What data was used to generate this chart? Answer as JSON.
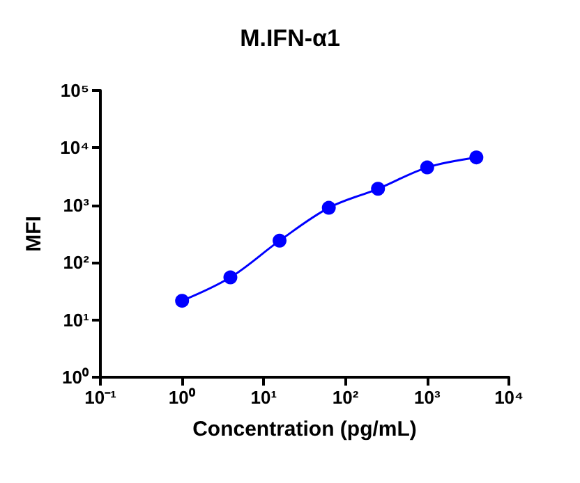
{
  "chart_data": {
    "type": "line",
    "title": "M.IFN-α1",
    "xlabel": "Concentration (pg/mL)",
    "ylabel": "MFI",
    "x": [
      1,
      3.9,
      15.6,
      62.5,
      250,
      1000,
      4000
    ],
    "series": [
      {
        "color": "#0000ff",
        "values": [
          21.5,
          55,
          240,
          900,
          1930,
          4550,
          6800
        ]
      }
    ],
    "log": "xy",
    "xlim": [
      0.1,
      10000
    ],
    "ylim": [
      1,
      100000
    ],
    "xticks": [
      {
        "value": 0.1,
        "label": "10⁻¹"
      },
      {
        "value": 1,
        "label": "10⁰"
      },
      {
        "value": 10,
        "label": "10¹"
      },
      {
        "value": 100,
        "label": "10²"
      },
      {
        "value": 1000,
        "label": "10³"
      },
      {
        "value": 10000,
        "label": "10⁴"
      }
    ],
    "yticks": [
      {
        "value": 1,
        "label": "10⁰"
      },
      {
        "value": 10,
        "label": "10¹"
      },
      {
        "value": 100,
        "label": "10²"
      },
      {
        "value": 1000,
        "label": "10³"
      },
      {
        "value": 10000,
        "label": "10⁴"
      },
      {
        "value": 100000,
        "label": "10⁵"
      }
    ],
    "grid": false,
    "marker": "circle",
    "line_style": "solid"
  }
}
